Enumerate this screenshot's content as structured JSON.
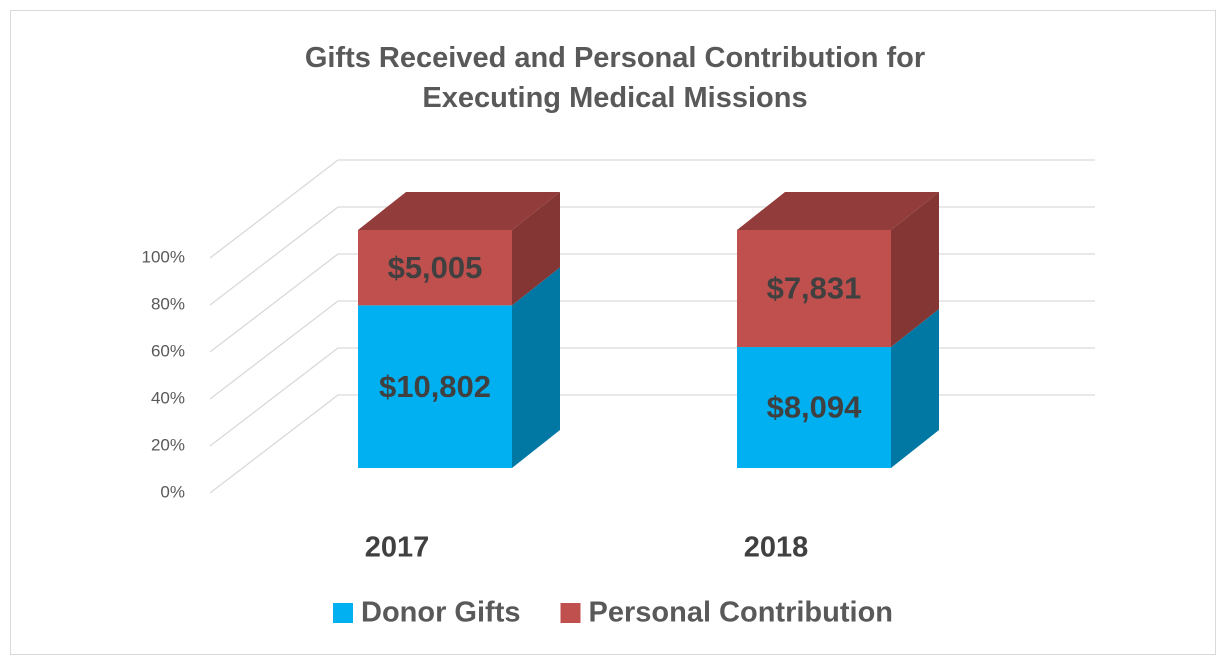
{
  "chart_data": {
    "type": "bar",
    "stacked": "percent",
    "title": "Gifts Received and Personal Contribution for Executing Medical Missions",
    "categories": [
      "2017",
      "2018"
    ],
    "series": [
      {
        "name": "Donor Gifts",
        "color": "#00b0f0",
        "values": [
          10802,
          8094
        ],
        "value_labels": [
          "$10,802",
          "$8,094"
        ]
      },
      {
        "name": "Personal Contribution",
        "color": "#c0504d",
        "values": [
          5005,
          7831
        ],
        "value_labels": [
          "$5,005",
          "$7,831"
        ]
      }
    ],
    "ylim": [
      0,
      100
    ],
    "yticks": [
      {
        "value": 0,
        "label": "0%"
      },
      {
        "value": 20,
        "label": "20%"
      },
      {
        "value": 40,
        "label": "40%"
      },
      {
        "value": 60,
        "label": "60%"
      },
      {
        "value": 80,
        "label": "80%"
      },
      {
        "value": 100,
        "label": "100%"
      }
    ],
    "grid": true,
    "legend": "bottom"
  }
}
